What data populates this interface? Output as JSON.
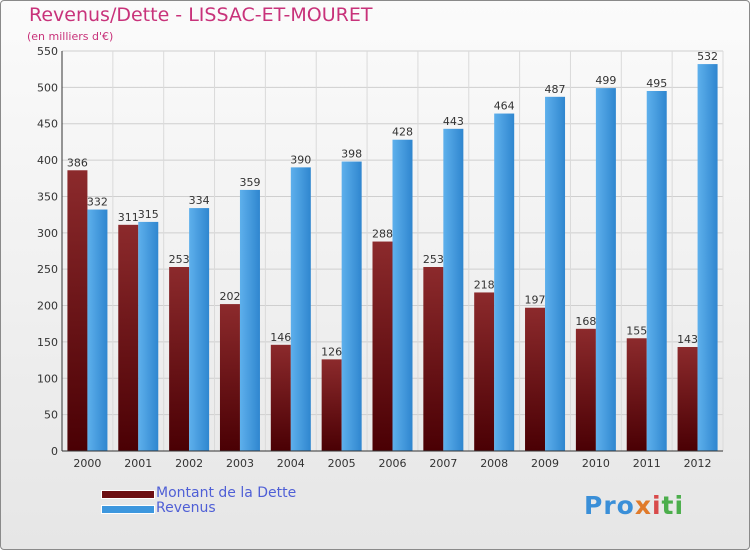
{
  "chart_data": {
    "type": "bar",
    "title": "Revenus/Dette - LISSAC-ET-MOURET",
    "subtitle": "(en milliers d'€)",
    "categories": [
      "2000",
      "2001",
      "2002",
      "2003",
      "2004",
      "2005",
      "2006",
      "2007",
      "2008",
      "2009",
      "2010",
      "2011",
      "2012"
    ],
    "series": [
      {
        "name": "Montant de la Dette",
        "color": "#6d0f12",
        "values": [
          386,
          311,
          253,
          202,
          146,
          126,
          288,
          253,
          218,
          197,
          168,
          155,
          143
        ]
      },
      {
        "name": "Revenus",
        "color": "#3d97de",
        "values": [
          332,
          315,
          334,
          359,
          390,
          398,
          428,
          443,
          464,
          487,
          499,
          495,
          532
        ]
      }
    ],
    "ylim": [
      0,
      550
    ],
    "yticks": [
      0,
      50,
      100,
      150,
      200,
      250,
      300,
      350,
      400,
      450,
      500,
      550
    ],
    "grid": true,
    "legend": "bottom-left"
  },
  "logo": {
    "parts": [
      "Pro",
      "x",
      "i",
      "ti"
    ]
  }
}
